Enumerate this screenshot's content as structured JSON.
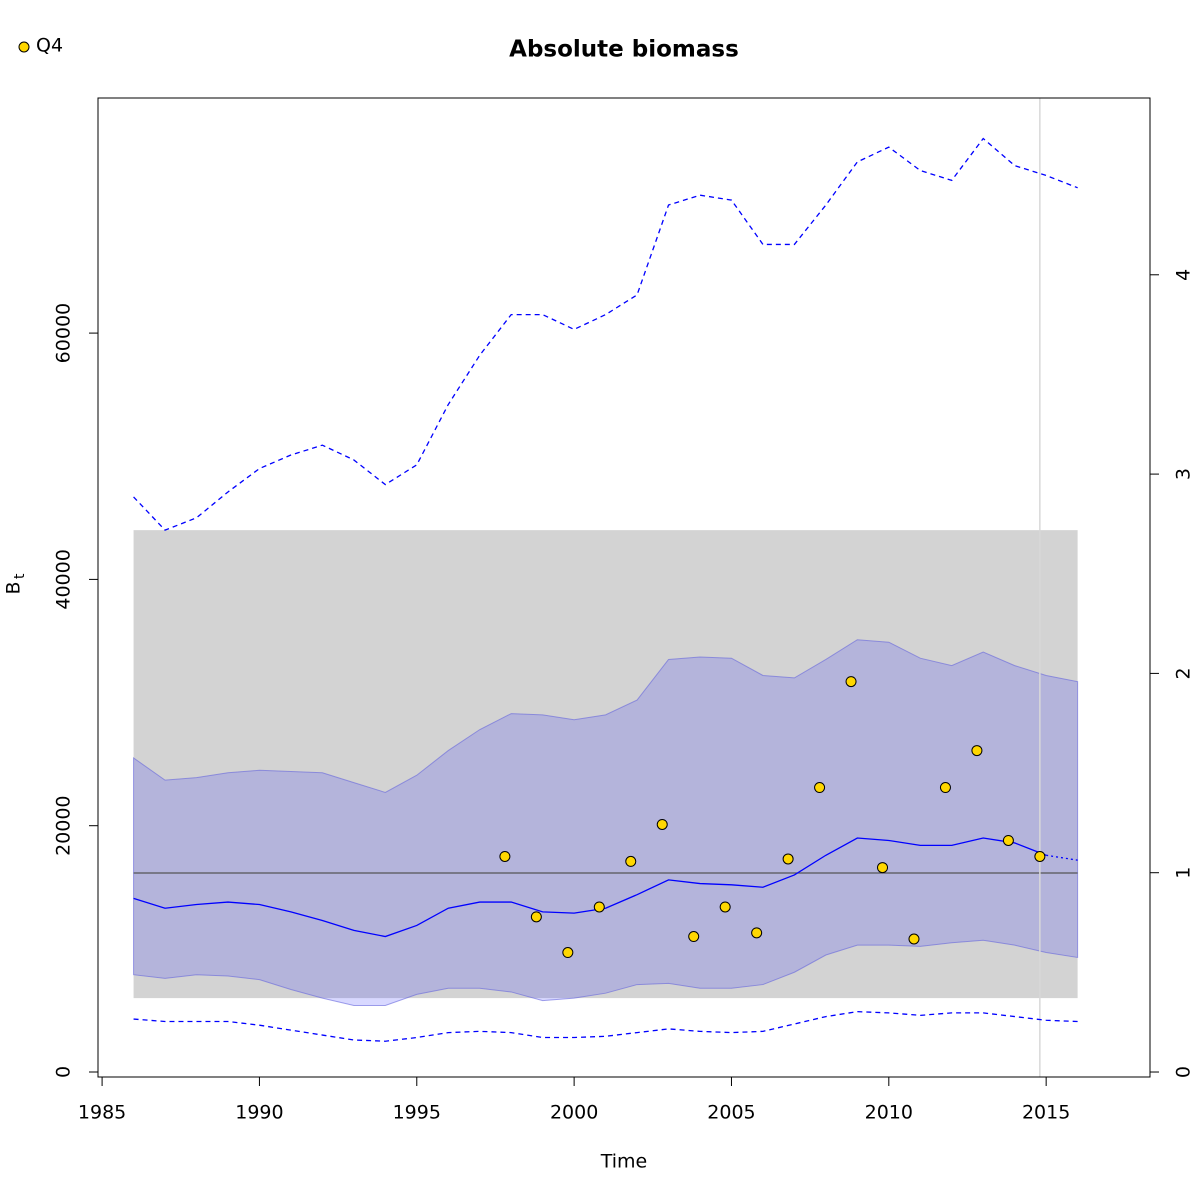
{
  "chart_data": {
    "type": "line",
    "title": "Absolute biomass",
    "xlabel": "Time",
    "ylabel": "B",
    "ylabel_sub": "t",
    "xlim": [
      1984.87,
      2018.3
    ],
    "ylim": [
      -406,
      79090
    ],
    "y2lim": [
      -0.025,
      4.887
    ],
    "xticks": [
      1985,
      1990,
      1995,
      2000,
      2005,
      2010,
      2015
    ],
    "yticks": [
      0,
      20000,
      40000,
      60000
    ],
    "y2ticks": [
      0,
      1,
      2,
      3,
      4
    ],
    "x": [
      1986,
      1987,
      1988,
      1989,
      1990,
      1991,
      1992,
      1993,
      1994,
      1995,
      1996,
      1997,
      1998,
      1999,
      2000,
      2001,
      2002,
      2003,
      2004,
      2005,
      2006,
      2007,
      2008,
      2009,
      2010,
      2011,
      2012,
      2013,
      2014,
      2015,
      2016
    ],
    "ref_band": {
      "x": [
        1986,
        2016
      ],
      "lower": 6000,
      "upper": 44000,
      "color": "#d3d3d3"
    },
    "ref_line": {
      "value": 16160,
      "color": "#555555"
    },
    "vline": {
      "value": 2014.8,
      "color": "#d8d8d8"
    },
    "band": {
      "color": "rgba(60,60,255,0.2)",
      "edge": "rgba(100,100,220,0.6)",
      "upper": [
        25500,
        23700,
        23900,
        24300,
        24500,
        24400,
        24300,
        23500,
        22700,
        24100,
        26100,
        27800,
        29100,
        29000,
        28600,
        29000,
        30200,
        33500,
        33700,
        33600,
        32200,
        32000,
        33500,
        35100,
        34900,
        33600,
        33000,
        34100,
        33000,
        32200,
        31700
      ],
      "lower": [
        7900,
        7600,
        7900,
        7800,
        7500,
        6700,
        6000,
        5400,
        5400,
        6300,
        6800,
        6800,
        6500,
        5800,
        6000,
        6400,
        7100,
        7200,
        6800,
        6800,
        7100,
        8100,
        9500,
        10300,
        10300,
        10200,
        10500,
        10700,
        10300,
        9700,
        9300
      ]
    },
    "series": [
      {
        "color": "#0000ff",
        "style": "solid",
        "values": [
          14100,
          13300,
          13600,
          13800,
          13600,
          13000,
          12300,
          11500,
          11000,
          11900,
          13300,
          13800,
          13800,
          13000,
          12900,
          13300,
          14400,
          15600,
          15300,
          15200,
          15000,
          16000,
          17600,
          19000,
          18800,
          18400,
          18400,
          19000,
          18600,
          17600,
          null
        ]
      },
      {
        "color": "#0000ff",
        "style": "dotted",
        "values": [
          null,
          null,
          null,
          null,
          null,
          null,
          null,
          null,
          null,
          null,
          null,
          null,
          null,
          null,
          null,
          null,
          null,
          null,
          null,
          null,
          null,
          null,
          null,
          null,
          null,
          null,
          null,
          null,
          null,
          17600,
          17200
        ]
      },
      {
        "color": "#0000ff",
        "style": "dashed",
        "values": [
          46700,
          44000,
          45000,
          47100,
          49000,
          50100,
          50900,
          49700,
          47700,
          49300,
          54200,
          58200,
          61500,
          61500,
          60300,
          61500,
          63100,
          70400,
          71200,
          70800,
          67200,
          67200,
          70400,
          73900,
          75100,
          73200,
          72400,
          75800,
          73600,
          72800,
          71800
        ]
      },
      {
        "color": "#0000ff",
        "style": "dashed",
        "values": [
          4300,
          4100,
          4100,
          4100,
          3800,
          3400,
          3000,
          2600,
          2500,
          2800,
          3200,
          3300,
          3200,
          2800,
          2800,
          2900,
          3200,
          3500,
          3300,
          3200,
          3300,
          3900,
          4500,
          4900,
          4800,
          4600,
          4800,
          4800,
          4500,
          4200,
          4100
        ]
      }
    ],
    "points": {
      "name": "Q4",
      "color": "#ffd700",
      "x": [
        1997.8,
        1998.8,
        1999.8,
        2000.8,
        2001.8,
        2002.8,
        2003.8,
        2004.8,
        2005.8,
        2006.8,
        2007.8,
        2008.8,
        2009.8,
        2010.8,
        2011.8,
        2012.8,
        2013.8,
        2014.8
      ],
      "values": [
        17500,
        12600,
        9700,
        13400,
        17100,
        20100,
        11000,
        13400,
        11300,
        17300,
        23100,
        31700,
        16600,
        10800,
        23100,
        26100,
        18800,
        17500
      ]
    }
  }
}
